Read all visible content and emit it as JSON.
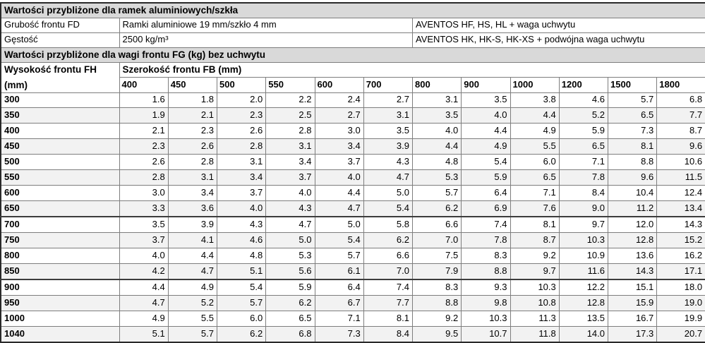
{
  "colors": {
    "section_header_bg": "#d9d9d9",
    "alt_row_bg": "#f2f2f2",
    "grid_border": "#7e7e7e",
    "strong_border": "#3c3c3c",
    "text": "#000000"
  },
  "info": {
    "section1_title": "Wartości przybliżone dla ramek aluminiowych/szkła",
    "rows": [
      {
        "label": "Grubość frontu FD",
        "value": "Ramki aluminiowe 19 mm/szkło 4 mm",
        "note": "AVENTOS HF, HS, HL + waga uchwytu"
      },
      {
        "label": "Gęstość",
        "value": "2500 kg/m³",
        "note": "AVENTOS HK, HK-S, HK-XS + podwójna waga uchwytu"
      }
    ],
    "section2_title": "Wartości przybliżone dla wagi frontu FG (kg) bez uchwytu"
  },
  "matrix": {
    "row_header_title": "Wysokość frontu FH",
    "row_header_unit": "(mm)",
    "col_group_title": "Szerokość frontu FB (mm)",
    "columns": [
      "400",
      "450",
      "500",
      "550",
      "600",
      "700",
      "800",
      "900",
      "1000",
      "1200",
      "1500",
      "1800"
    ],
    "rows": [
      {
        "fh": "300",
        "thick_top": false,
        "values": [
          "1.6",
          "1.8",
          "2.0",
          "2.2",
          "2.4",
          "2.7",
          "3.1",
          "3.5",
          "3.8",
          "4.6",
          "5.7",
          "6.8"
        ]
      },
      {
        "fh": "350",
        "thick_top": false,
        "values": [
          "1.9",
          "2.1",
          "2.3",
          "2.5",
          "2.7",
          "3.1",
          "3.5",
          "4.0",
          "4.4",
          "5.2",
          "6.5",
          "7.7"
        ]
      },
      {
        "fh": "400",
        "thick_top": false,
        "values": [
          "2.1",
          "2.3",
          "2.6",
          "2.8",
          "3.0",
          "3.5",
          "4.0",
          "4.4",
          "4.9",
          "5.9",
          "7.3",
          "8.7"
        ]
      },
      {
        "fh": "450",
        "thick_top": false,
        "values": [
          "2.3",
          "2.6",
          "2.8",
          "3.1",
          "3.4",
          "3.9",
          "4.4",
          "4.9",
          "5.5",
          "6.5",
          "8.1",
          "9.6"
        ]
      },
      {
        "fh": "500",
        "thick_top": false,
        "values": [
          "2.6",
          "2.8",
          "3.1",
          "3.4",
          "3.7",
          "4.3",
          "4.8",
          "5.4",
          "6.0",
          "7.1",
          "8.8",
          "10.6"
        ]
      },
      {
        "fh": "550",
        "thick_top": false,
        "values": [
          "2.8",
          "3.1",
          "3.4",
          "3.7",
          "4.0",
          "4.7",
          "5.3",
          "5.9",
          "6.5",
          "7.8",
          "9.6",
          "11.5"
        ]
      },
      {
        "fh": "600",
        "thick_top": false,
        "values": [
          "3.0",
          "3.4",
          "3.7",
          "4.0",
          "4.4",
          "5.0",
          "5.7",
          "6.4",
          "7.1",
          "8.4",
          "10.4",
          "12.4"
        ]
      },
      {
        "fh": "650",
        "thick_top": false,
        "values": [
          "3.3",
          "3.6",
          "4.0",
          "4.3",
          "4.7",
          "5.4",
          "6.2",
          "6.9",
          "7.6",
          "9.0",
          "11.2",
          "13.4"
        ]
      },
      {
        "fh": "700",
        "thick_top": true,
        "values": [
          "3.5",
          "3.9",
          "4.3",
          "4.7",
          "5.0",
          "5.8",
          "6.6",
          "7.4",
          "8.1",
          "9.7",
          "12.0",
          "14.3"
        ]
      },
      {
        "fh": "750",
        "thick_top": false,
        "values": [
          "3.7",
          "4.1",
          "4.6",
          "5.0",
          "5.4",
          "6.2",
          "7.0",
          "7.8",
          "8.7",
          "10.3",
          "12.8",
          "15.2"
        ]
      },
      {
        "fh": "800",
        "thick_top": false,
        "values": [
          "4.0",
          "4.4",
          "4.8",
          "5.3",
          "5.7",
          "6.6",
          "7.5",
          "8.3",
          "9.2",
          "10.9",
          "13.6",
          "16.2"
        ]
      },
      {
        "fh": "850",
        "thick_top": false,
        "values": [
          "4.2",
          "4.7",
          "5.1",
          "5.6",
          "6.1",
          "7.0",
          "7.9",
          "8.8",
          "9.7",
          "11.6",
          "14.3",
          "17.1"
        ]
      },
      {
        "fh": "900",
        "thick_top": true,
        "values": [
          "4.4",
          "4.9",
          "5.4",
          "5.9",
          "6.4",
          "7.4",
          "8.3",
          "9.3",
          "10.3",
          "12.2",
          "15.1",
          "18.0"
        ]
      },
      {
        "fh": "950",
        "thick_top": false,
        "values": [
          "4.7",
          "5.2",
          "5.7",
          "6.2",
          "6.7",
          "7.7",
          "8.8",
          "9.8",
          "10.8",
          "12.8",
          "15.9",
          "19.0"
        ]
      },
      {
        "fh": "1000",
        "thick_top": false,
        "values": [
          "4.9",
          "5.5",
          "6.0",
          "6.5",
          "7.1",
          "8.1",
          "9.2",
          "10.3",
          "11.3",
          "13.5",
          "16.7",
          "19.9"
        ]
      },
      {
        "fh": "1040",
        "thick_top": false,
        "values": [
          "5.1",
          "5.7",
          "6.2",
          "6.8",
          "7.3",
          "8.4",
          "9.5",
          "10.7",
          "11.8",
          "14.0",
          "17.3",
          "20.7"
        ]
      }
    ]
  }
}
